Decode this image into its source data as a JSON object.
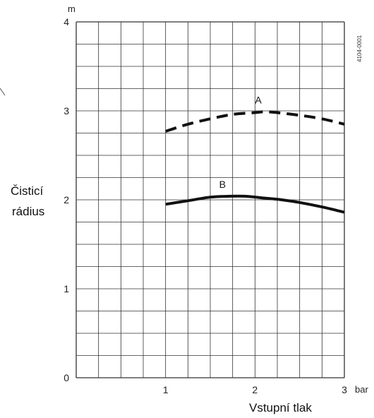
{
  "chart_data": {
    "type": "line",
    "xlabel": "Vstupní tlak",
    "xunit": "bar",
    "ylabel": [
      "Čisticí",
      "rádius"
    ],
    "yunit": "m",
    "xlim": [
      0,
      3
    ],
    "ylim": [
      0,
      4
    ],
    "grid": true,
    "x_ticks": [
      1,
      2,
      3
    ],
    "y_ticks": [
      0,
      1,
      2,
      3,
      4
    ],
    "code": "4104-0001",
    "series": [
      {
        "name": "A",
        "style": "dashed",
        "x": [
          1.0,
          1.25,
          1.5,
          1.75,
          2.0,
          2.1,
          2.25,
          2.5,
          2.75,
          3.0
        ],
        "y": [
          2.77,
          2.85,
          2.91,
          2.96,
          2.98,
          2.99,
          2.98,
          2.95,
          2.91,
          2.85
        ]
      },
      {
        "name": "B",
        "style": "solid",
        "x": [
          1.0,
          1.25,
          1.5,
          1.7,
          1.9,
          2.1,
          2.3,
          2.5,
          2.75,
          3.0
        ],
        "y": [
          1.95,
          1.99,
          2.03,
          2.04,
          2.04,
          2.02,
          2.0,
          1.97,
          1.92,
          1.86
        ]
      }
    ]
  }
}
